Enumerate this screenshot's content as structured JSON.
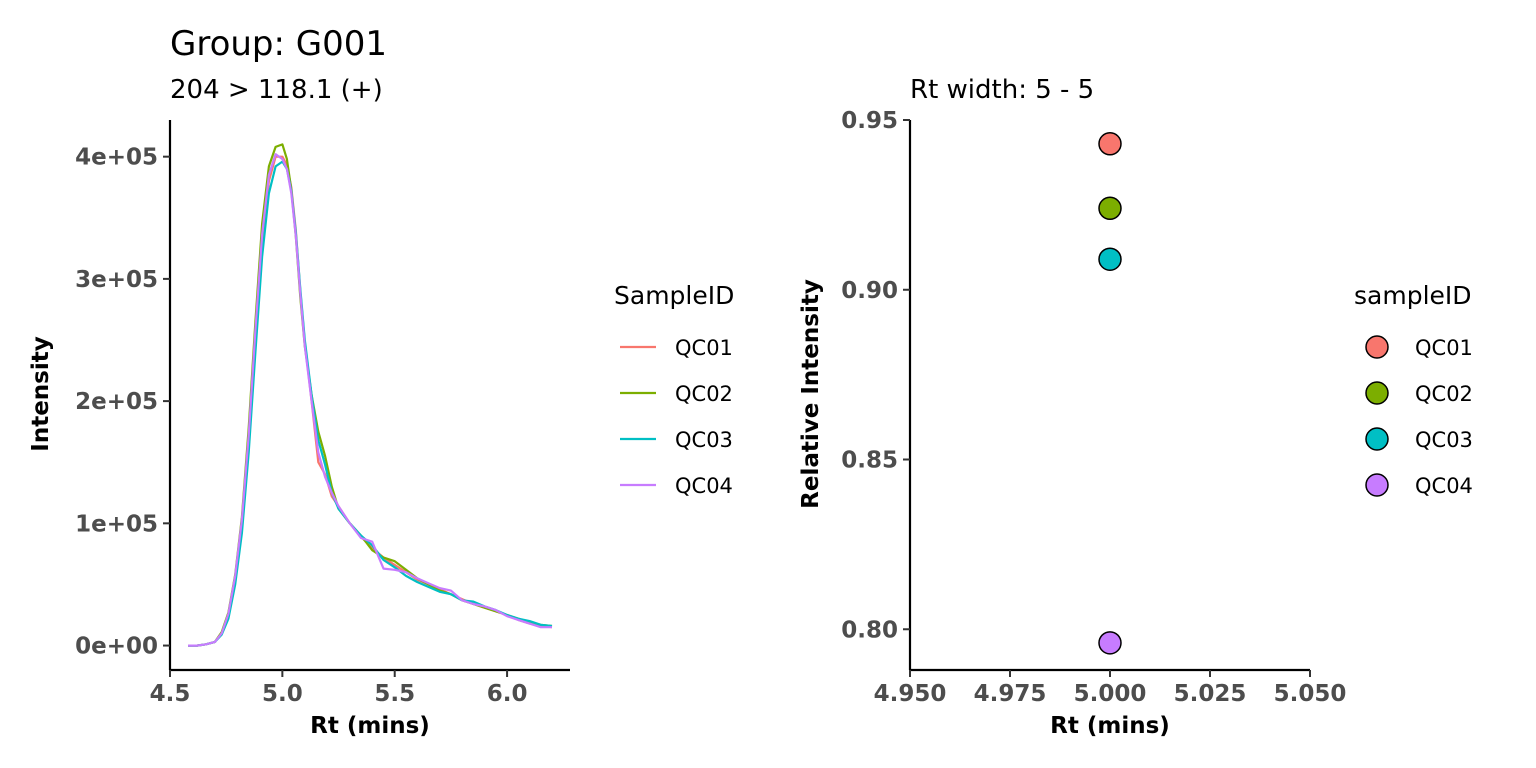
{
  "chart_data": [
    {
      "type": "line",
      "title": "Group: G001",
      "subtitle": "204 > 118.1 (+)",
      "xlabel": "Rt (mins)",
      "ylabel": "Intensity",
      "xlim": [
        4.5,
        6.28
      ],
      "ylim": [
        -20000,
        430000
      ],
      "xticks": [
        4.5,
        5.0,
        5.5,
        6.0
      ],
      "xtick_labels": [
        "4.5",
        "5.0",
        "5.5",
        "6.0"
      ],
      "yticks": [
        0,
        100000,
        200000,
        300000,
        400000
      ],
      "ytick_labels": [
        "0e+00",
        "1e+05",
        "2e+05",
        "3e+05",
        "4e+05"
      ],
      "grid": false,
      "legend": {
        "title": "SampleID",
        "placement": "right"
      },
      "series": [
        {
          "name": "QC01",
          "color": "#F8766D",
          "x": [
            4.58,
            4.62,
            4.66,
            4.7,
            4.73,
            4.76,
            4.79,
            4.82,
            4.85,
            4.88,
            4.91,
            4.94,
            4.97,
            5.0,
            5.02,
            5.04,
            5.06,
            5.08,
            5.1,
            5.13,
            5.16,
            5.19,
            5.22,
            5.25,
            5.3,
            5.35,
            5.4,
            5.45,
            5.5,
            5.55,
            5.6,
            5.65,
            5.7,
            5.75,
            5.8,
            5.85,
            5.9,
            5.95,
            6.0,
            6.05,
            6.1,
            6.15,
            6.2
          ],
          "y": [
            0,
            0,
            1000,
            3000,
            10000,
            25000,
            55000,
            100000,
            170000,
            255000,
            330000,
            380000,
            400000,
            400000,
            393000,
            375000,
            340000,
            290000,
            248000,
            200000,
            150000,
            140000,
            122000,
            114000,
            100000,
            89000,
            80000,
            72000,
            66000,
            60000,
            54000,
            50000,
            46000,
            42000,
            38000,
            34000,
            31000,
            28000,
            25000,
            21000,
            18000,
            16000,
            15000
          ]
        },
        {
          "name": "QC02",
          "color": "#7CAE00",
          "x": [
            4.58,
            4.62,
            4.66,
            4.7,
            4.73,
            4.76,
            4.79,
            4.82,
            4.85,
            4.88,
            4.91,
            4.94,
            4.97,
            5.0,
            5.02,
            5.04,
            5.06,
            5.08,
            5.1,
            5.13,
            5.16,
            5.19,
            5.22,
            5.25,
            5.3,
            5.35,
            5.4,
            5.45,
            5.5,
            5.55,
            5.6,
            5.65,
            5.7,
            5.75,
            5.8,
            5.85,
            5.9,
            5.95,
            6.0,
            6.05,
            6.1,
            6.15,
            6.2
          ],
          "y": [
            0,
            0,
            1000,
            3000,
            11000,
            27000,
            58000,
            105000,
            178000,
            265000,
            345000,
            392000,
            408000,
            410000,
            398000,
            373000,
            335000,
            285000,
            245000,
            205000,
            175000,
            155000,
            130000,
            112000,
            100000,
            90000,
            78000,
            72000,
            69000,
            62000,
            55000,
            50000,
            45000,
            42000,
            37000,
            34000,
            31000,
            28000,
            25000,
            22000,
            19000,
            17000,
            16000
          ]
        },
        {
          "name": "QC03",
          "color": "#00BFC4",
          "x": [
            4.58,
            4.62,
            4.66,
            4.7,
            4.73,
            4.76,
            4.79,
            4.82,
            4.85,
            4.88,
            4.91,
            4.94,
            4.97,
            5.0,
            5.02,
            5.04,
            5.06,
            5.08,
            5.1,
            5.13,
            5.16,
            5.19,
            5.22,
            5.25,
            5.3,
            5.35,
            5.4,
            5.45,
            5.5,
            5.55,
            5.6,
            5.65,
            5.7,
            5.75,
            5.8,
            5.85,
            5.9,
            5.95,
            6.0,
            6.05,
            6.1,
            6.15,
            6.2
          ],
          "y": [
            0,
            0,
            1000,
            3000,
            9000,
            22000,
            50000,
            92000,
            158000,
            240000,
            318000,
            370000,
            392000,
            396000,
            390000,
            372000,
            338000,
            292000,
            250000,
            205000,
            168000,
            148000,
            125000,
            112000,
            100000,
            90000,
            82000,
            70000,
            64000,
            57000,
            52000,
            48000,
            44000,
            42000,
            37000,
            36000,
            32000,
            29000,
            25000,
            22000,
            20000,
            17000,
            16000
          ]
        },
        {
          "name": "QC04",
          "color": "#C77CFF",
          "x": [
            4.58,
            4.62,
            4.66,
            4.7,
            4.73,
            4.76,
            4.79,
            4.82,
            4.85,
            4.88,
            4.91,
            4.94,
            4.97,
            5.0,
            5.02,
            5.04,
            5.06,
            5.08,
            5.1,
            5.13,
            5.16,
            5.19,
            5.22,
            5.25,
            5.3,
            5.35,
            5.4,
            5.45,
            5.5,
            5.55,
            5.6,
            5.65,
            5.7,
            5.75,
            5.8,
            5.85,
            5.9,
            5.95,
            6.0,
            6.05,
            6.1,
            6.15,
            6.2
          ],
          "y": [
            0,
            0,
            1000,
            3000,
            10000,
            26000,
            57000,
            103000,
            172000,
            258000,
            336000,
            385000,
            402000,
            398000,
            390000,
            370000,
            335000,
            288000,
            245000,
            200000,
            158000,
            138000,
            125000,
            114000,
            100000,
            88000,
            85000,
            63000,
            62000,
            60000,
            55000,
            51000,
            47000,
            45000,
            37000,
            34000,
            32000,
            29000,
            24000,
            21000,
            18000,
            15000,
            15000
          ]
        }
      ]
    },
    {
      "type": "scatter",
      "title": "Rt width: 5 - 5",
      "xlabel": "Rt (mins)",
      "ylabel": "Relative Intensity",
      "xlim": [
        4.95,
        5.05
      ],
      "ylim": [
        0.788,
        0.95
      ],
      "xticks": [
        4.95,
        4.975,
        5.0,
        5.025,
        5.05
      ],
      "xtick_labels": [
        "4.950",
        "4.975",
        "5.000",
        "5.025",
        "5.050"
      ],
      "yticks": [
        0.8,
        0.85,
        0.9,
        0.95
      ],
      "ytick_labels": [
        "0.80",
        "0.85",
        "0.90",
        "0.95"
      ],
      "grid": false,
      "legend": {
        "title": "sampleID",
        "placement": "right"
      },
      "points": [
        {
          "name": "QC01",
          "x": 5.0,
          "y": 0.943,
          "color": "#F8766D"
        },
        {
          "name": "QC02",
          "x": 5.0,
          "y": 0.924,
          "color": "#7CAE00"
        },
        {
          "name": "QC03",
          "x": 5.0,
          "y": 0.909,
          "color": "#00BFC4"
        },
        {
          "name": "QC04",
          "x": 5.0,
          "y": 0.796,
          "color": "#C77CFF"
        }
      ]
    }
  ]
}
